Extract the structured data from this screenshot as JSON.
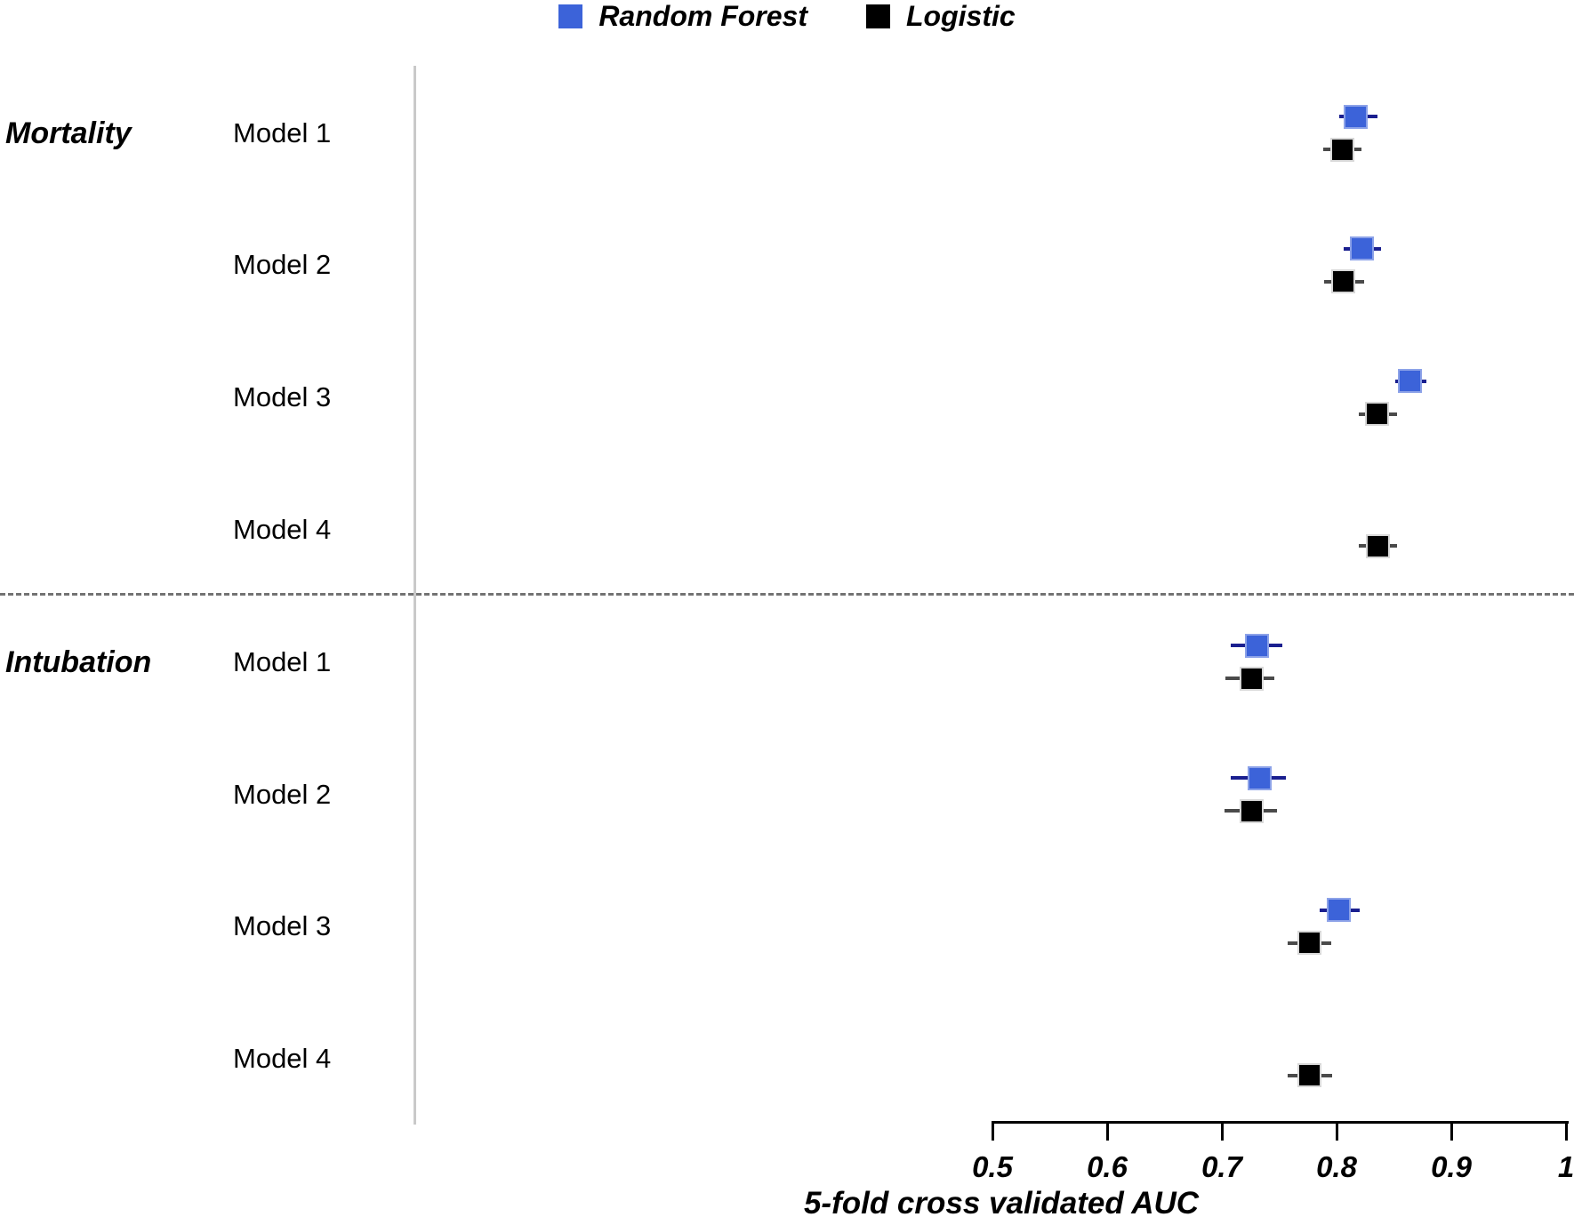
{
  "chart_data": {
    "type": "scatter",
    "title": "",
    "xlabel": "5-fold cross validated AUC",
    "ylabel": "",
    "xlim": [
      0.5,
      1.0
    ],
    "x_tick_values": [
      0.5,
      0.6,
      0.7,
      0.8,
      0.9,
      1.0
    ],
    "x_tick_labels": [
      "0.5",
      "0.6",
      "0.7",
      "0.8",
      "0.9",
      "1"
    ],
    "grid": false,
    "legend_position": "top-center",
    "legend": [
      {
        "name": "Random Forest",
        "key": "rf",
        "color": "#3c63d9",
        "whisker_color": "#1a1f8f"
      },
      {
        "name": "Logistic",
        "key": "logistic",
        "color": "#000000",
        "whisker_color": "#4a4a4a"
      }
    ],
    "separator": {
      "style": "dashed",
      "color": "#737373",
      "between": [
        "Mortality",
        "Intubation"
      ]
    },
    "groups": [
      {
        "label": "Mortality",
        "models": [
          {
            "label": "Model 1",
            "rf": {
              "auc": 0.817,
              "ci_low": 0.802,
              "ci_high": 0.836
            },
            "logistic": {
              "auc": 0.805,
              "ci_low": 0.788,
              "ci_high": 0.822
            }
          },
          {
            "label": "Model 2",
            "rf": {
              "auc": 0.822,
              "ci_low": 0.806,
              "ci_high": 0.839
            },
            "logistic": {
              "auc": 0.806,
              "ci_low": 0.789,
              "ci_high": 0.824
            }
          },
          {
            "label": "Model 3",
            "rf": {
              "auc": 0.864,
              "ci_low": 0.851,
              "ci_high": 0.878
            },
            "logistic": {
              "auc": 0.835,
              "ci_low": 0.819,
              "ci_high": 0.853
            }
          },
          {
            "label": "Model 4",
            "rf": null,
            "logistic": {
              "auc": 0.836,
              "ci_low": 0.819,
              "ci_high": 0.853
            }
          }
        ]
      },
      {
        "label": "Intubation",
        "models": [
          {
            "label": "Model 1",
            "rf": {
              "auc": 0.731,
              "ci_low": 0.708,
              "ci_high": 0.753
            },
            "logistic": {
              "auc": 0.726,
              "ci_low": 0.703,
              "ci_high": 0.746
            }
          },
          {
            "label": "Model 2",
            "rf": {
              "auc": 0.733,
              "ci_low": 0.708,
              "ci_high": 0.756
            },
            "logistic": {
              "auc": 0.726,
              "ci_low": 0.702,
              "ci_high": 0.748
            }
          },
          {
            "label": "Model 3",
            "rf": {
              "auc": 0.802,
              "ci_low": 0.785,
              "ci_high": 0.82
            },
            "logistic": {
              "auc": 0.776,
              "ci_low": 0.757,
              "ci_high": 0.795
            }
          },
          {
            "label": "Model 4",
            "rf": null,
            "logistic": {
              "auc": 0.776,
              "ci_low": 0.757,
              "ci_high": 0.796
            }
          }
        ]
      }
    ]
  }
}
